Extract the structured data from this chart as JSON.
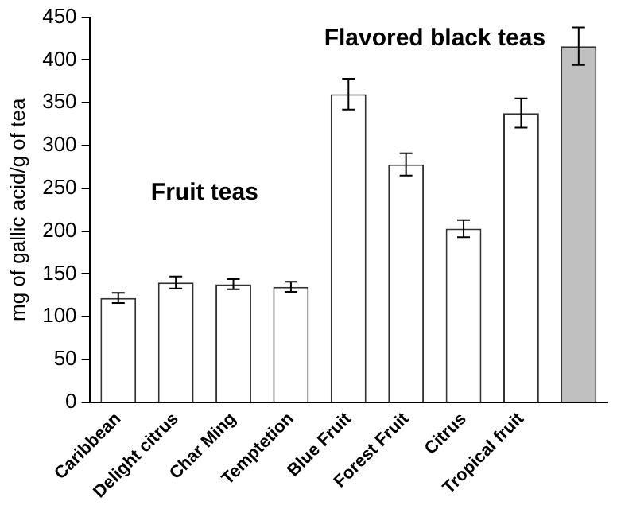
{
  "chart_data": {
    "type": "bar",
    "ylabel": "mg of gallic acid/g of tea",
    "categories": [
      "Caribbean",
      "Delight citrus",
      "Char Ming",
      "Temptetion",
      "Blue Fruit",
      "Forest Fruit",
      "Citrus",
      "Tropical fruit",
      null
    ],
    "values": [
      122,
      140,
      138,
      135,
      360,
      278,
      203,
      338,
      416
    ],
    "errors": [
      6,
      7,
      6,
      6,
      18,
      13,
      10,
      17,
      22
    ],
    "colors": [
      "#ffffff",
      "#ffffff",
      "#ffffff",
      "#ffffff",
      "#ffffff",
      "#ffffff",
      "#ffffff",
      "#ffffff",
      "#c0c0c0"
    ],
    "ylim": [
      0,
      450
    ],
    "yticks": [
      0,
      50,
      100,
      150,
      200,
      250,
      300,
      350,
      400,
      450
    ],
    "annotations": [
      "Fruit teas",
      "Flavored black teas"
    ],
    "grid": false,
    "legend": false
  }
}
